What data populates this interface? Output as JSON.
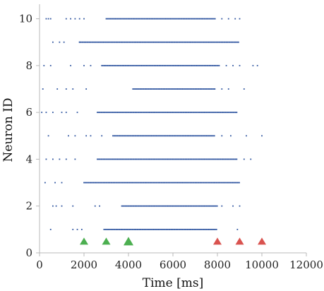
{
  "chart_data": {
    "type": "scatter",
    "title": "",
    "xlabel": "Time [ms]",
    "ylabel": "Neuron ID",
    "xlim": [
      0,
      12000
    ],
    "ylim": [
      0,
      10.5
    ],
    "xticks": [
      0,
      2000,
      4000,
      6000,
      8000,
      10000,
      12000
    ],
    "yticks": [
      0,
      2,
      4,
      6,
      8,
      10
    ],
    "grid": false,
    "colors": {
      "spikes": "#2f55a0",
      "stim_on": "#4caf50",
      "stim_off": "#d9534f"
    },
    "markers": [
      {
        "name": "",
        "x": 2000,
        "y": 0.5,
        "color": "#4caf50",
        "size": "small"
      },
      {
        "name": "",
        "x": 3000,
        "y": 0.5,
        "color": "#4caf50",
        "size": "small"
      },
      {
        "name": "",
        "x": 4000,
        "y": 0.5,
        "color": "#4caf50",
        "size": "large"
      },
      {
        "name": "",
        "x": 8000,
        "y": 0.5,
        "color": "#d9534f",
        "size": "small"
      },
      {
        "name": "",
        "x": 9000,
        "y": 0.5,
        "color": "#d9534f",
        "size": "small"
      },
      {
        "name": "",
        "x": 10000,
        "y": 0.5,
        "color": "#d9534f",
        "size": "small"
      }
    ],
    "neurons": [
      {
        "id": 1,
        "sparse": [
          500,
          1500,
          1700,
          1900
        ],
        "dense": [
          [
            2900,
            8000
          ]
        ],
        "sparse_after": [
          8900
        ]
      },
      {
        "id": 2,
        "sparse": [
          600,
          750,
          1000,
          1500,
          2500,
          2700
        ],
        "dense": [
          [
            3700,
            8000
          ]
        ],
        "sparse_after": [
          8200,
          8700,
          9000
        ]
      },
      {
        "id": 3,
        "sparse": [
          250,
          700,
          1000
        ],
        "dense": [
          [
            2000,
            9000
          ]
        ],
        "sparse_after": []
      },
      {
        "id": 4,
        "sparse": [
          300,
          600,
          900,
          1200,
          1600
        ],
        "dense": [
          [
            2600,
            8900
          ]
        ],
        "sparse_after": [
          9200,
          9500
        ]
      },
      {
        "id": 5,
        "sparse": [
          400,
          1300,
          1600,
          2100,
          2300,
          2800
        ],
        "dense": [
          [
            3300,
            7900
          ]
        ],
        "sparse_after": [
          8200,
          8600,
          9300,
          10000
        ]
      },
      {
        "id": 6,
        "sparse": [
          100,
          300,
          600,
          1000,
          1200,
          1700
        ],
        "dense": [
          [
            2600,
            8900
          ]
        ],
        "sparse_after": []
      },
      {
        "id": 7,
        "sparse": [
          150,
          800,
          1200,
          1500,
          2100
        ],
        "dense": [
          [
            4200,
            7900
          ]
        ],
        "sparse_after": [
          8200,
          8500,
          9200
        ]
      },
      {
        "id": 8,
        "sparse": [
          200,
          500,
          1400,
          2000,
          2300
        ],
        "dense": [
          [
            2800,
            8100
          ]
        ],
        "sparse_after": [
          8400,
          8700,
          9000,
          9600,
          9800
        ]
      },
      {
        "id": 9,
        "sparse": [
          600,
          900,
          1100,
          1800
        ],
        "dense": [
          [
            1800,
            9000
          ]
        ],
        "sparse_after": []
      },
      {
        "id": 10,
        "sparse": [
          300,
          400,
          500,
          1200,
          1400,
          1600,
          1800,
          2000
        ],
        "dense": [
          [
            3000,
            7900
          ]
        ],
        "sparse_after": [
          8200,
          8500,
          8800,
          9000
        ]
      }
    ]
  }
}
